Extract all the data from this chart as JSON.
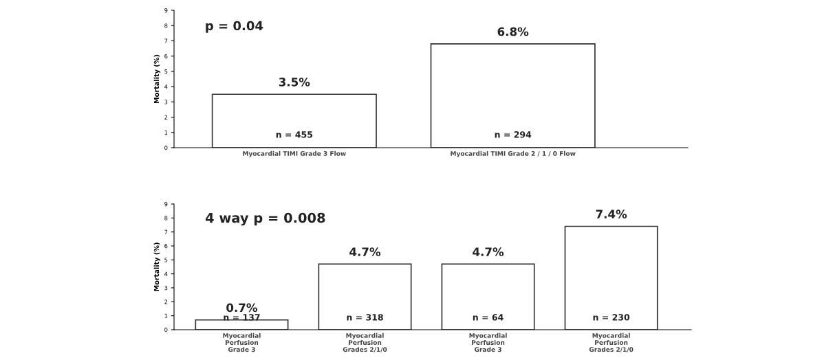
{
  "chart_data": [
    {
      "type": "bar",
      "ylabel": "Mortality (%)",
      "categories": [
        "Myocardial TIMI Grade 3 Flow",
        "Myocardial TIMI Grade 2 / 1 / 0 Flow"
      ],
      "values": [
        3.5,
        6.8
      ],
      "color": "#ffffff",
      "value_labels": [
        "3.5%",
        "6.8%"
      ],
      "ylim": [
        0,
        9
      ],
      "yticks": [
        0,
        1,
        2,
        3,
        4,
        5,
        6,
        7,
        8,
        9
      ],
      "grid": false,
      "legend": false,
      "annotations": [
        "p = 0.04",
        "n = 455",
        "n = 294"
      ]
    },
    {
      "type": "bar",
      "ylabel": "Mortality (%)",
      "categories": [
        "Myocardial\nPerfusion\nGrade 3",
        "Myocardial\nPerfusion\nGrades 2/1/0",
        "Myocardial\nPerfusion\nGrade 3",
        "Myocardial\nPerfusion\nGrades 2/1/0"
      ],
      "values": [
        0.7,
        4.7,
        4.7,
        7.4
      ],
      "color": "#ffffff",
      "value_labels": [
        "0.7%",
        "4.7%",
        "4.7%",
        "7.4%"
      ],
      "ylim": [
        0,
        9
      ],
      "yticks": [
        0,
        1,
        2,
        3,
        4,
        5,
        6,
        7,
        8,
        9
      ],
      "grid": false,
      "legend": false,
      "annotations": [
        "4 way p = 0.008",
        "n = 137",
        "n = 318",
        "n = 64",
        "n = 230"
      ]
    }
  ]
}
